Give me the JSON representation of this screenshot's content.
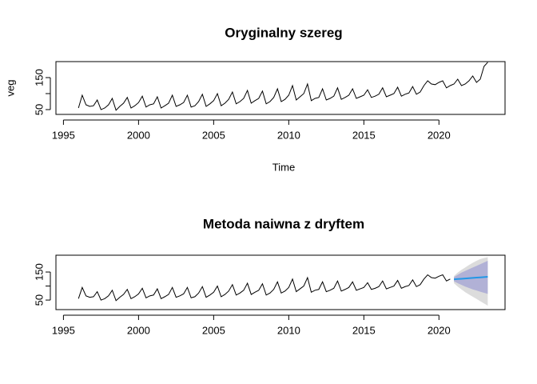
{
  "chart_data": [
    {
      "type": "line",
      "title": "Oryginalny szereg",
      "xlabel": "Time",
      "ylabel": "veg",
      "xlim": [
        1994.5,
        2024.4
      ],
      "ylim": [
        35,
        200
      ],
      "xticks": [
        1995,
        2000,
        2005,
        2010,
        2015,
        2020
      ],
      "yticks": [
        50,
        {
          "value": 100,
          "label": null
        },
        150
      ],
      "series": [
        {
          "name": "veg",
          "color": "#000000",
          "x": [
            1996,
            1996.25,
            1996.5,
            1996.75,
            1997,
            1997.25,
            1997.5,
            1997.75,
            1998,
            1998.25,
            1998.5,
            1998.75,
            1999,
            1999.25,
            1999.5,
            1999.75,
            2000,
            2000.25,
            2000.5,
            2000.75,
            2001,
            2001.25,
            2001.5,
            2001.75,
            2002,
            2002.25,
            2002.5,
            2002.75,
            2003,
            2003.25,
            2003.5,
            2003.75,
            2004,
            2004.25,
            2004.5,
            2004.75,
            2005,
            2005.25,
            2005.5,
            2005.75,
            2006,
            2006.25,
            2006.5,
            2006.75,
            2007,
            2007.25,
            2007.5,
            2007.75,
            2008,
            2008.25,
            2008.5,
            2008.75,
            2009,
            2009.25,
            2009.5,
            2009.75,
            2010,
            2010.25,
            2010.5,
            2010.75,
            2011,
            2011.25,
            2011.5,
            2011.75,
            2012,
            2012.25,
            2012.5,
            2012.75,
            2013,
            2013.25,
            2013.5,
            2013.75,
            2014,
            2014.25,
            2014.5,
            2014.75,
            2015,
            2015.25,
            2015.5,
            2015.75,
            2016,
            2016.25,
            2016.5,
            2016.75,
            2017,
            2017.25,
            2017.5,
            2017.75,
            2018,
            2018.25,
            2018.5,
            2018.75,
            2019,
            2019.25,
            2019.5,
            2019.75,
            2020,
            2020.25,
            2020.5,
            2020.75,
            2021,
            2021.25,
            2021.5,
            2021.75,
            2022,
            2022.25,
            2022.5,
            2022.75,
            2023,
            2023.25
          ],
          "values": [
            55,
            95,
            65,
            60,
            62,
            80,
            50,
            55,
            65,
            85,
            48,
            60,
            70,
            88,
            55,
            62,
            72,
            92,
            58,
            65,
            68,
            90,
            55,
            62,
            70,
            95,
            60,
            65,
            72,
            95,
            58,
            62,
            75,
            98,
            60,
            68,
            78,
            100,
            62,
            70,
            82,
            105,
            68,
            75,
            85,
            110,
            70,
            78,
            85,
            108,
            68,
            75,
            88,
            115,
            75,
            82,
            95,
            125,
            80,
            90,
            100,
            130,
            78,
            85,
            88,
            115,
            80,
            85,
            92,
            118,
            82,
            88,
            95,
            115,
            85,
            90,
            95,
            112,
            88,
            92,
            98,
            118,
            90,
            95,
            100,
            120,
            92,
            98,
            102,
            122,
            98,
            105,
            125,
            140,
            130,
            128,
            135,
            140,
            118,
            125,
            130,
            145,
            125,
            130,
            140,
            155,
            135,
            145,
            185,
            198
          ]
        }
      ]
    },
    {
      "type": "forecast",
      "title": "Metoda naiwna z dryftem",
      "xlim": [
        1994.5,
        2024.4
      ],
      "ylim": [
        16,
        210
      ],
      "xticks": [
        1995,
        2000,
        2005,
        2010,
        2015,
        2020
      ],
      "yticks": [
        50,
        {
          "value": 100,
          "label": null
        },
        150
      ],
      "series": [
        {
          "name": "veg",
          "color": "#000000",
          "x": [
            1996,
            1996.25,
            1996.5,
            1996.75,
            1997,
            1997.25,
            1997.5,
            1997.75,
            1998,
            1998.25,
            1998.5,
            1998.75,
            1999,
            1999.25,
            1999.5,
            1999.75,
            2000,
            2000.25,
            2000.5,
            2000.75,
            2001,
            2001.25,
            2001.5,
            2001.75,
            2002,
            2002.25,
            2002.5,
            2002.75,
            2003,
            2003.25,
            2003.5,
            2003.75,
            2004,
            2004.25,
            2004.5,
            2004.75,
            2005,
            2005.25,
            2005.5,
            2005.75,
            2006,
            2006.25,
            2006.5,
            2006.75,
            2007,
            2007.25,
            2007.5,
            2007.75,
            2008,
            2008.25,
            2008.5,
            2008.75,
            2009,
            2009.25,
            2009.5,
            2009.75,
            2010,
            2010.25,
            2010.5,
            2010.75,
            2011,
            2011.25,
            2011.5,
            2011.75,
            2012,
            2012.25,
            2012.5,
            2012.75,
            2013,
            2013.25,
            2013.5,
            2013.75,
            2014,
            2014.25,
            2014.5,
            2014.75,
            2015,
            2015.25,
            2015.5,
            2015.75,
            2016,
            2016.25,
            2016.5,
            2016.75,
            2017,
            2017.25,
            2017.5,
            2017.75,
            2018,
            2018.25,
            2018.5,
            2018.75,
            2019,
            2019.25,
            2019.5,
            2019.75,
            2020,
            2020.25,
            2020.5,
            2020.75
          ],
          "values": [
            55,
            95,
            65,
            60,
            62,
            80,
            50,
            55,
            65,
            85,
            48,
            60,
            70,
            88,
            55,
            62,
            72,
            92,
            58,
            65,
            68,
            90,
            55,
            62,
            70,
            95,
            60,
            65,
            72,
            95,
            58,
            62,
            75,
            98,
            60,
            68,
            78,
            100,
            62,
            70,
            82,
            105,
            68,
            75,
            85,
            110,
            70,
            78,
            85,
            108,
            68,
            75,
            88,
            115,
            75,
            82,
            95,
            125,
            80,
            90,
            100,
            130,
            78,
            85,
            88,
            115,
            80,
            85,
            92,
            118,
            82,
            88,
            95,
            115,
            85,
            90,
            95,
            112,
            88,
            92,
            98,
            118,
            90,
            95,
            100,
            120,
            92,
            98,
            102,
            122,
            98,
            105,
            125,
            140,
            130,
            128,
            135,
            140,
            118,
            125
          ]
        }
      ],
      "forecast": {
        "x": [
          2021,
          2021.25,
          2021.5,
          2021.75,
          2022,
          2022.25,
          2022.5,
          2022.75,
          2023,
          2023.25
        ],
        "mean": [
          124,
          125,
          126,
          127,
          128,
          129,
          130,
          131,
          132,
          133
        ],
        "lo80": [
          117,
          110,
          104,
          98,
          93,
          88,
          84,
          80,
          76,
          72
        ],
        "hi80": [
          132,
          140,
          148,
          154,
          160,
          166,
          172,
          178,
          184,
          190
        ],
        "lo95": [
          110,
          98,
          88,
          78,
          70,
          62,
          54,
          46,
          38,
          30
        ],
        "hi95": [
          136,
          148,
          158,
          166,
          175,
          183,
          190,
          196,
          200,
          203
        ],
        "mean_color": "#2297e6",
        "band80_color": "#b1b1d6",
        "band95_color": "#dcdcdc"
      }
    }
  ]
}
